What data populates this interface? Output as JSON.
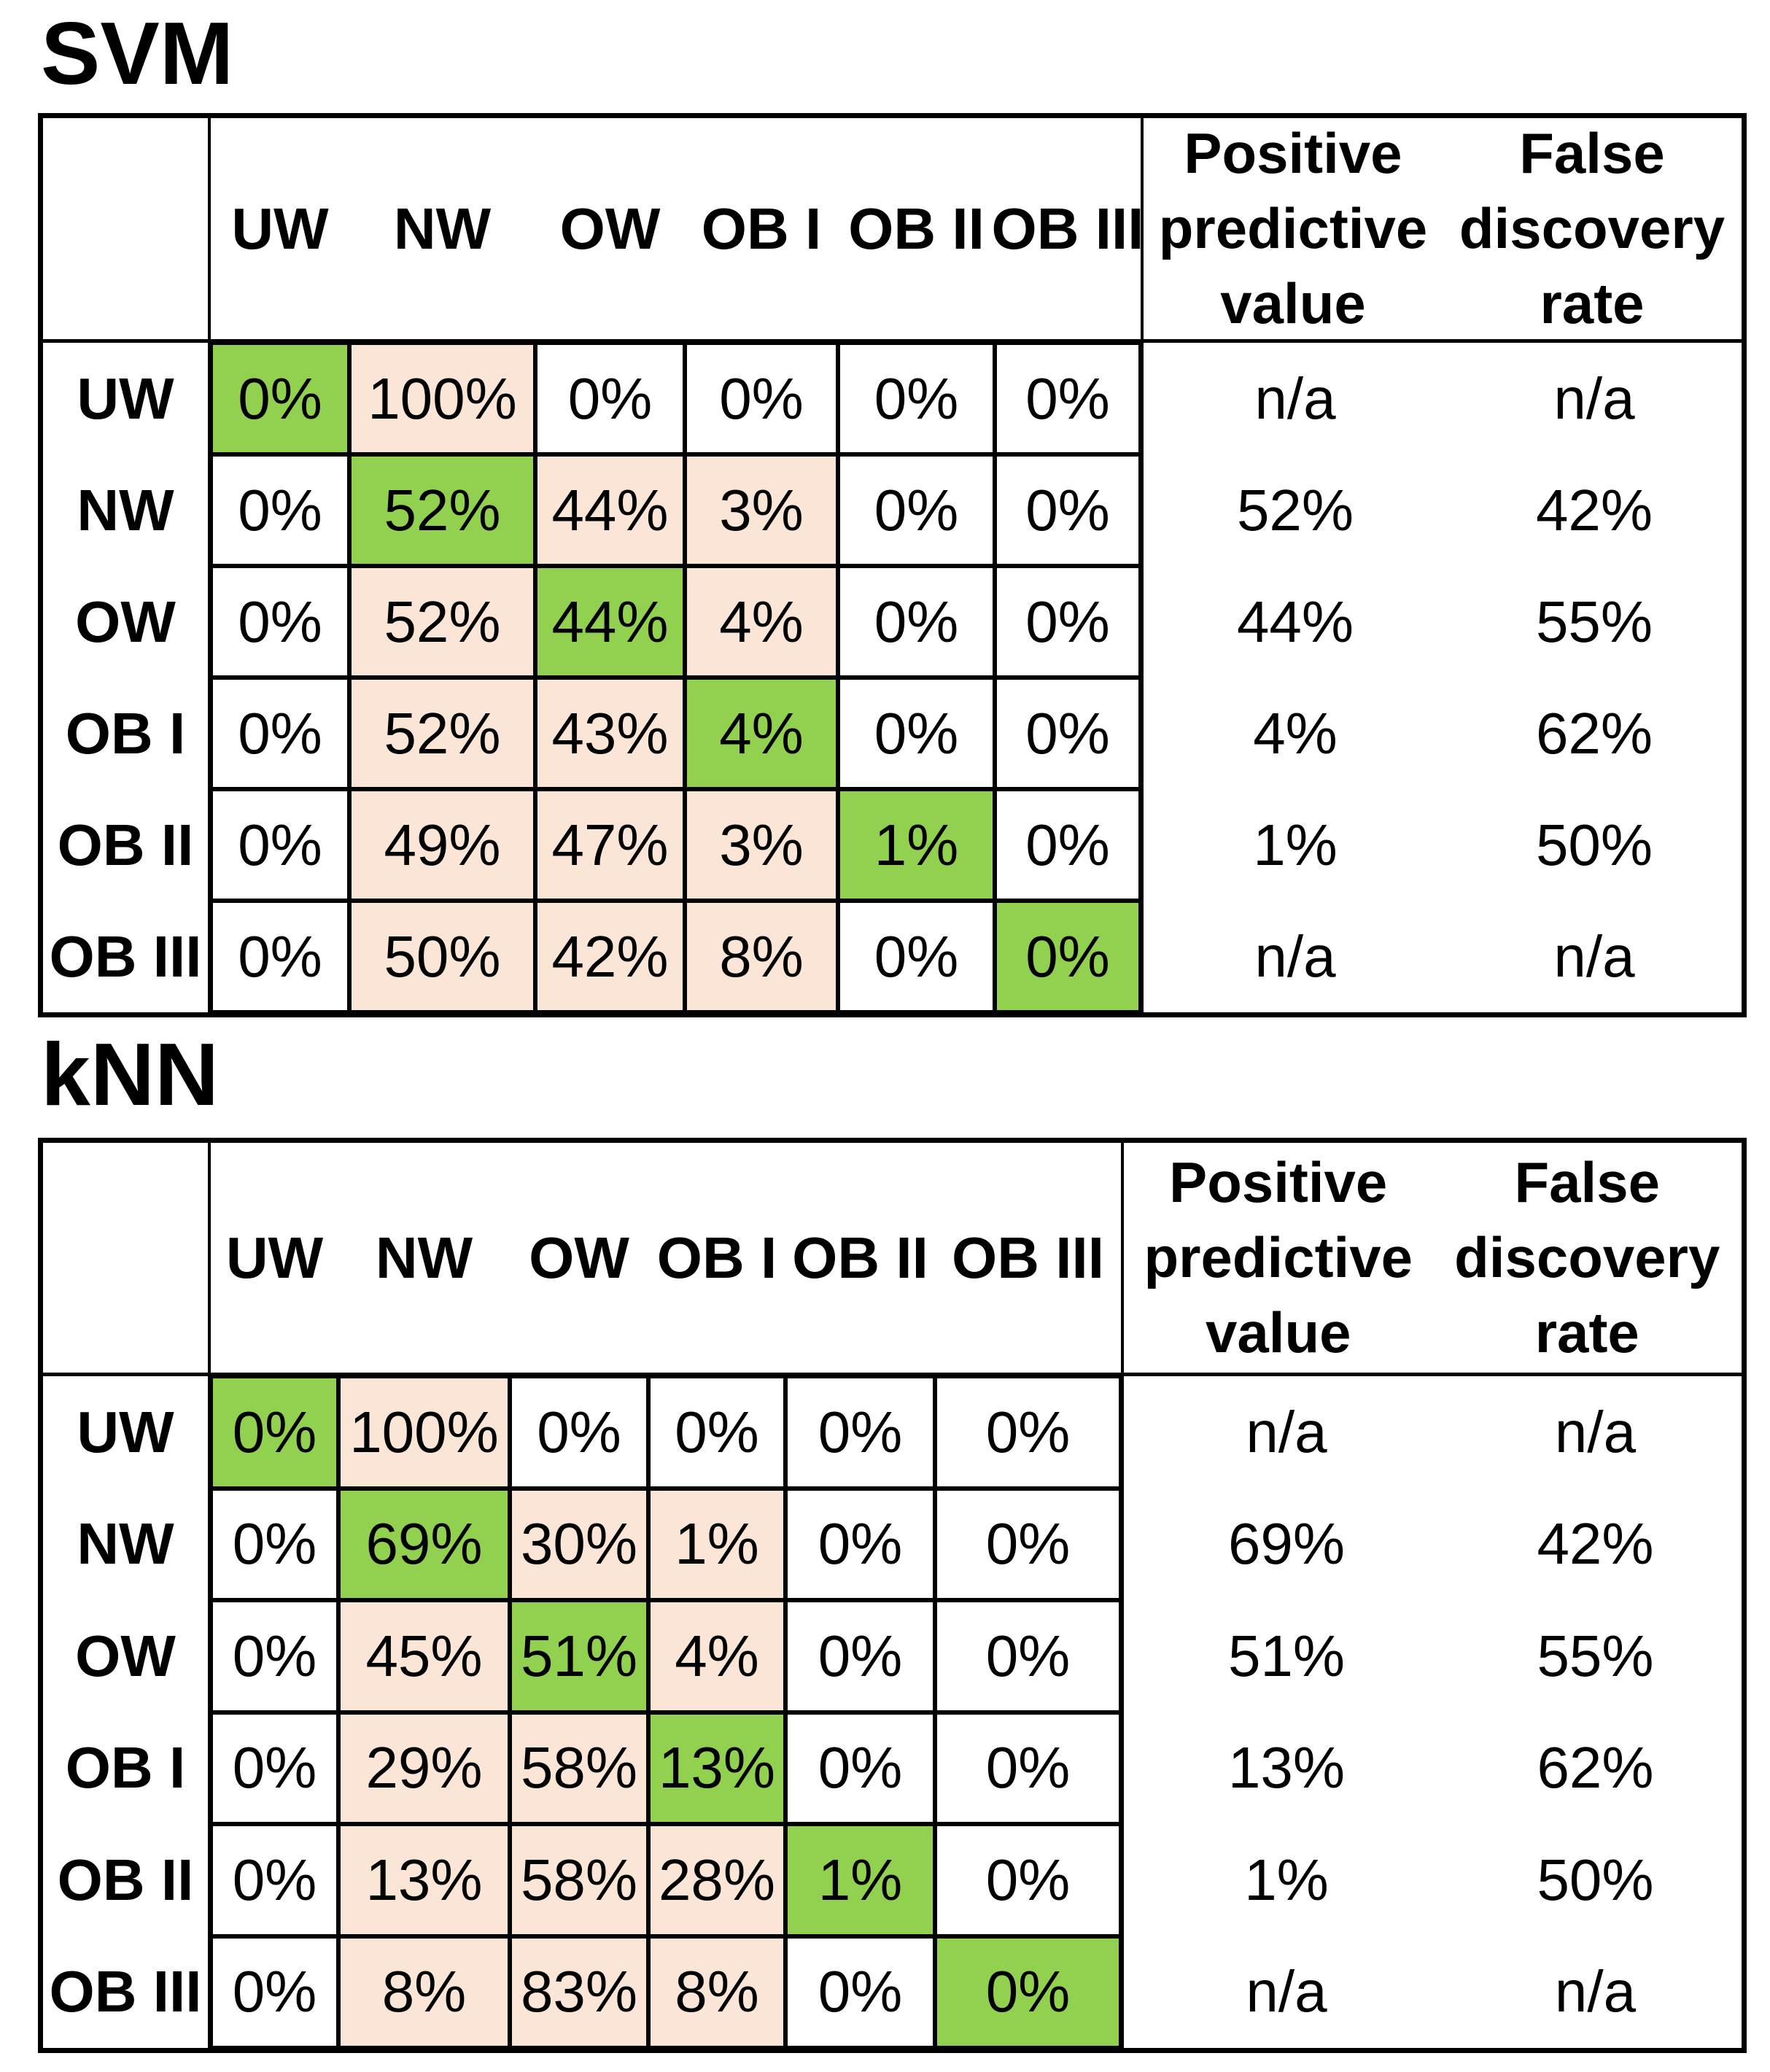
{
  "colors": {
    "green": "#92D050",
    "pink": "#FBE5D6",
    "cell_default": "#FFFFFF",
    "border": "#000000"
  },
  "tables": [
    {
      "title": "SVM",
      "col_headers": [
        "UW",
        "NW",
        "OW",
        "OB I",
        "OB II",
        "OB III"
      ],
      "ppv_header": "Positive predictive value",
      "fdr_header": "False discovery rate",
      "rows": [
        {
          "label": "UW",
          "cells": [
            {
              "v": "0%",
              "hl": "green"
            },
            {
              "v": "100%",
              "hl": "pink"
            },
            {
              "v": "0%",
              "hl": "none"
            },
            {
              "v": "0%",
              "hl": "none"
            },
            {
              "v": "0%",
              "hl": "none"
            },
            {
              "v": "0%",
              "hl": "none"
            }
          ],
          "ppv": "n/a",
          "fdr": "n/a"
        },
        {
          "label": "NW",
          "cells": [
            {
              "v": "0%",
              "hl": "none"
            },
            {
              "v": "52%",
              "hl": "green"
            },
            {
              "v": "44%",
              "hl": "pink"
            },
            {
              "v": "3%",
              "hl": "pink"
            },
            {
              "v": "0%",
              "hl": "none"
            },
            {
              "v": "0%",
              "hl": "none"
            }
          ],
          "ppv": "52%",
          "fdr": "42%"
        },
        {
          "label": "OW",
          "cells": [
            {
              "v": "0%",
              "hl": "none"
            },
            {
              "v": "52%",
              "hl": "pink"
            },
            {
              "v": "44%",
              "hl": "green"
            },
            {
              "v": "4%",
              "hl": "pink"
            },
            {
              "v": "0%",
              "hl": "none"
            },
            {
              "v": "0%",
              "hl": "none"
            }
          ],
          "ppv": "44%",
          "fdr": "55%"
        },
        {
          "label": "OB I",
          "cells": [
            {
              "v": "0%",
              "hl": "none"
            },
            {
              "v": "52%",
              "hl": "pink"
            },
            {
              "v": "43%",
              "hl": "pink"
            },
            {
              "v": "4%",
              "hl": "green"
            },
            {
              "v": "0%",
              "hl": "none"
            },
            {
              "v": "0%",
              "hl": "none"
            }
          ],
          "ppv": "4%",
          "fdr": "62%"
        },
        {
          "label": "OB II",
          "cells": [
            {
              "v": "0%",
              "hl": "none"
            },
            {
              "v": "49%",
              "hl": "pink"
            },
            {
              "v": "47%",
              "hl": "pink"
            },
            {
              "v": "3%",
              "hl": "pink"
            },
            {
              "v": "1%",
              "hl": "green"
            },
            {
              "v": "0%",
              "hl": "none"
            }
          ],
          "ppv": "1%",
          "fdr": "50%"
        },
        {
          "label": "OB III",
          "cells": [
            {
              "v": "0%",
              "hl": "none"
            },
            {
              "v": "50%",
              "hl": "pink"
            },
            {
              "v": "42%",
              "hl": "pink"
            },
            {
              "v": "8%",
              "hl": "pink"
            },
            {
              "v": "0%",
              "hl": "none"
            },
            {
              "v": "0%",
              "hl": "green"
            }
          ],
          "ppv": "n/a",
          "fdr": "n/a"
        }
      ]
    },
    {
      "title": "kNN",
      "col_headers": [
        "UW",
        "NW",
        "OW",
        "OB I",
        "OB II",
        "OB III"
      ],
      "ppv_header": "Positive predictive value",
      "fdr_header": "False discovery rate",
      "rows": [
        {
          "label": "UW",
          "cells": [
            {
              "v": "0%",
              "hl": "green"
            },
            {
              "v": "100%",
              "hl": "pink"
            },
            {
              "v": "0%",
              "hl": "none"
            },
            {
              "v": "0%",
              "hl": "none"
            },
            {
              "v": "0%",
              "hl": "none"
            },
            {
              "v": "0%",
              "hl": "none"
            }
          ],
          "ppv": "n/a",
          "fdr": "n/a"
        },
        {
          "label": "NW",
          "cells": [
            {
              "v": "0%",
              "hl": "none"
            },
            {
              "v": "69%",
              "hl": "green"
            },
            {
              "v": "30%",
              "hl": "pink"
            },
            {
              "v": "1%",
              "hl": "pink"
            },
            {
              "v": "0%",
              "hl": "none"
            },
            {
              "v": "0%",
              "hl": "none"
            }
          ],
          "ppv": "69%",
          "fdr": "42%"
        },
        {
          "label": "OW",
          "cells": [
            {
              "v": "0%",
              "hl": "none"
            },
            {
              "v": "45%",
              "hl": "pink"
            },
            {
              "v": "51%",
              "hl": "green"
            },
            {
              "v": "4%",
              "hl": "pink"
            },
            {
              "v": "0%",
              "hl": "none"
            },
            {
              "v": "0%",
              "hl": "none"
            }
          ],
          "ppv": "51%",
          "fdr": "55%"
        },
        {
          "label": "OB I",
          "cells": [
            {
              "v": "0%",
              "hl": "none"
            },
            {
              "v": "29%",
              "hl": "pink"
            },
            {
              "v": "58%",
              "hl": "pink"
            },
            {
              "v": "13%",
              "hl": "green"
            },
            {
              "v": "0%",
              "hl": "none"
            },
            {
              "v": "0%",
              "hl": "none"
            }
          ],
          "ppv": "13%",
          "fdr": "62%"
        },
        {
          "label": "OB II",
          "cells": [
            {
              "v": "0%",
              "hl": "none"
            },
            {
              "v": "13%",
              "hl": "pink"
            },
            {
              "v": "58%",
              "hl": "pink"
            },
            {
              "v": "28%",
              "hl": "pink"
            },
            {
              "v": "1%",
              "hl": "green"
            },
            {
              "v": "0%",
              "hl": "none"
            }
          ],
          "ppv": "1%",
          "fdr": "50%"
        },
        {
          "label": "OB III",
          "cells": [
            {
              "v": "0%",
              "hl": "none"
            },
            {
              "v": "8%",
              "hl": "pink"
            },
            {
              "v": "83%",
              "hl": "pink"
            },
            {
              "v": "8%",
              "hl": "pink"
            },
            {
              "v": "0%",
              "hl": "none"
            },
            {
              "v": "0%",
              "hl": "green"
            }
          ],
          "ppv": "n/a",
          "fdr": "n/a"
        }
      ]
    }
  ]
}
